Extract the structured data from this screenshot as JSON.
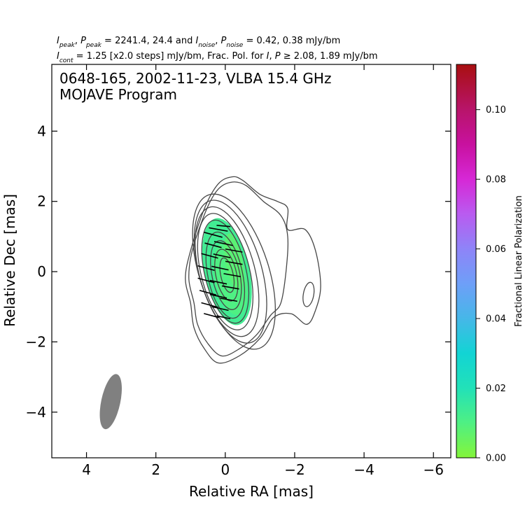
{
  "header": {
    "line1": {
      "i_sym": "I",
      "i_sub": "peak",
      "sep1": ", ",
      "p_sym": "P",
      "p_sub": "peak",
      "text1": " = 2241.4, 24.4 and ",
      "i2_sym": "I",
      "i2_sub": "noise",
      "sep2": ", ",
      "p2_sym": "P",
      "p2_sub": "noise",
      "text2": " = 0.42, 0.38 mJy/bm"
    },
    "line2": {
      "i_sym": "I",
      "i_sub": "cont",
      "text1": " = 1.25 [x2.0 steps] mJy/bm, Frac. Pol. for ",
      "i2_sym": "I",
      "sep": ", ",
      "p_sym": "P",
      "text2": " ≥ 2.08, 1.89 mJy/bm"
    }
  },
  "chart_data": {
    "type": "contour",
    "title": "0648-165, 2002-11-23, VLBA 15.4 GHz",
    "subtitle": "MOJAVE Program",
    "xlabel": "Relative RA [mas]",
    "ylabel": "Relative Dec [mas]",
    "xlim": [
      5.0,
      -6.5
    ],
    "ylim": [
      -5.3,
      5.9
    ],
    "x_ticks": [
      4,
      2,
      0,
      -2,
      -4,
      -6
    ],
    "x_tick_labels": [
      "4",
      "2",
      "0",
      "−2",
      "−4",
      "−6"
    ],
    "y_ticks": [
      4,
      2,
      0,
      -2,
      -4
    ],
    "y_tick_labels": [
      "4",
      "2",
      "0",
      "−2",
      "−4"
    ],
    "contour_levels_mjy": [
      1.25,
      2.5,
      5,
      10,
      20,
      40,
      80,
      160,
      320,
      640,
      1280
    ],
    "contours": [
      {
        "cx": -0.45,
        "cy": 0.0,
        "a": 1.3,
        "b": 2.6,
        "pa": -20,
        "c": "#474747"
      },
      {
        "cx": -0.35,
        "cy": 0.0,
        "a": 1.15,
        "b": 2.45,
        "pa": -20,
        "c": "#474747"
      },
      {
        "cx": -0.25,
        "cy": 0.0,
        "a": 1.0,
        "b": 2.3,
        "pa": -18,
        "c": "#474747"
      },
      {
        "cx": -0.15,
        "cy": 0.0,
        "a": 0.9,
        "b": 2.1,
        "pa": -16,
        "c": "#474747"
      },
      {
        "cx": -0.05,
        "cy": 0.0,
        "a": 0.8,
        "b": 1.9,
        "pa": -15,
        "c": "#474747"
      },
      {
        "cx": 0.0,
        "cy": 0.0,
        "a": 0.7,
        "b": 1.7,
        "pa": -14,
        "c": "#474747"
      },
      {
        "cx": 0.0,
        "cy": 0.0,
        "a": 0.6,
        "b": 1.5,
        "pa": -13,
        "c": "#474747"
      },
      {
        "cx": 0.0,
        "cy": -0.1,
        "a": 0.5,
        "b": 1.25,
        "pa": -12,
        "c": "#474747"
      },
      {
        "cx": -0.02,
        "cy": -0.1,
        "a": 0.4,
        "b": 1.0,
        "pa": -12,
        "c": "#474747"
      },
      {
        "cx": -0.03,
        "cy": -0.1,
        "a": 0.3,
        "b": 0.75,
        "pa": -12,
        "c": "#474747"
      },
      {
        "cx": -0.05,
        "cy": -0.1,
        "a": 0.18,
        "b": 0.5,
        "pa": -12,
        "c": "#474747"
      }
    ],
    "outer_contour_points": [
      [
        0.9,
        -1.6
      ],
      [
        0.6,
        -2.2
      ],
      [
        0.2,
        -2.6
      ],
      [
        -0.4,
        -2.4
      ],
      [
        -1.0,
        -1.9
      ],
      [
        -1.4,
        -1.3
      ],
      [
        -1.9,
        -1.2
      ],
      [
        -2.35,
        -1.5
      ],
      [
        -2.6,
        -1.1
      ],
      [
        -2.75,
        -0.4
      ],
      [
        -2.6,
        0.6
      ],
      [
        -2.3,
        1.2
      ],
      [
        -1.8,
        1.2
      ],
      [
        -1.8,
        1.8
      ],
      [
        -1.5,
        2.0
      ],
      [
        -1.0,
        2.2
      ],
      [
        -0.5,
        2.6
      ],
      [
        -0.2,
        2.7
      ],
      [
        0.2,
        2.5
      ],
      [
        0.6,
        1.8
      ],
      [
        1.0,
        0.6
      ],
      [
        1.15,
        -0.2
      ],
      [
        1.0,
        -0.9
      ]
    ],
    "second_contour_points": [
      [
        0.8,
        -1.5
      ],
      [
        0.5,
        -2.05
      ],
      [
        0.1,
        -2.4
      ],
      [
        -0.4,
        -2.2
      ],
      [
        -0.9,
        -1.8
      ],
      [
        -1.3,
        -1.25
      ],
      [
        -1.6,
        -0.9
      ],
      [
        -1.75,
        0.0
      ],
      [
        -1.8,
        1.0
      ],
      [
        -1.6,
        1.6
      ],
      [
        -1.1,
        2.0
      ],
      [
        -0.6,
        2.45
      ],
      [
        -0.2,
        2.55
      ],
      [
        0.2,
        2.35
      ],
      [
        0.55,
        1.75
      ],
      [
        0.95,
        0.6
      ],
      [
        1.05,
        -0.2
      ],
      [
        0.9,
        -0.9
      ]
    ],
    "small_island": {
      "cx": -2.4,
      "cy": -0.65,
      "a": 0.15,
      "b": 0.35,
      "pa": 10
    },
    "polarization_regions": [
      {
        "cx": -0.05,
        "cy": 0.0,
        "a": 0.65,
        "b": 1.55,
        "pa": -12,
        "frac": 0.013
      },
      {
        "cx": -0.15,
        "cy": -0.2,
        "a": 0.45,
        "b": 1.05,
        "pa": -12,
        "frac": 0.01
      },
      {
        "cx": -0.25,
        "cy": 0.3,
        "a": 0.25,
        "b": 0.8,
        "pa": -10,
        "frac": 0.008
      }
    ],
    "evpa_vectors": [
      {
        "x": 0.2,
        "y": 1.2,
        "len": 0.55,
        "angle": 10
      },
      {
        "x": 0.35,
        "y": 1.05,
        "len": 0.55,
        "angle": 15
      },
      {
        "x": 0.05,
        "y": 1.3,
        "len": 0.4,
        "angle": 5
      },
      {
        "x": 0.35,
        "y": 0.75,
        "len": 0.5,
        "angle": 15
      },
      {
        "x": 0.05,
        "y": 0.8,
        "len": 0.55,
        "angle": 12
      },
      {
        "x": -0.25,
        "y": 0.6,
        "len": 0.5,
        "angle": 10
      },
      {
        "x": 0.45,
        "y": 0.45,
        "len": 0.5,
        "angle": 15
      },
      {
        "x": 0.1,
        "y": 0.45,
        "len": 0.5,
        "angle": 12
      },
      {
        "x": -0.25,
        "y": 0.25,
        "len": 0.5,
        "angle": 10
      },
      {
        "x": 0.55,
        "y": 0.1,
        "len": 0.5,
        "angle": 15
      },
      {
        "x": 0.15,
        "y": 0.1,
        "len": 0.5,
        "angle": 12
      },
      {
        "x": -0.2,
        "y": -0.1,
        "len": 0.5,
        "angle": 10
      },
      {
        "x": 0.55,
        "y": -0.25,
        "len": 0.5,
        "angle": 15
      },
      {
        "x": 0.2,
        "y": -0.3,
        "len": 0.5,
        "angle": 12
      },
      {
        "x": -0.15,
        "y": -0.45,
        "len": 0.5,
        "angle": 10
      },
      {
        "x": 0.5,
        "y": -0.6,
        "len": 0.5,
        "angle": 15
      },
      {
        "x": 0.2,
        "y": -0.7,
        "len": 0.5,
        "angle": 12
      },
      {
        "x": -0.1,
        "y": -0.8,
        "len": 0.5,
        "angle": 10
      },
      {
        "x": 0.45,
        "y": -0.95,
        "len": 0.5,
        "angle": 15
      },
      {
        "x": 0.15,
        "y": -1.05,
        "len": 0.5,
        "angle": 12
      },
      {
        "x": 0.4,
        "y": -1.25,
        "len": 0.45,
        "angle": 15
      },
      {
        "x": 0.05,
        "y": -1.3,
        "len": 0.4,
        "angle": 12
      }
    ],
    "beam": {
      "x": 3.3,
      "y": -3.7,
      "major": 1.6,
      "minor": 0.55,
      "pa": -12,
      "color": "#808080"
    },
    "colorbar": {
      "label": "Fractional Linear Polarization",
      "min": 0.0,
      "max": 0.113,
      "ticks": [
        0.0,
        0.02,
        0.04,
        0.06,
        0.08,
        0.1
      ],
      "tick_labels": [
        "0.00",
        "0.02",
        "0.04",
        "0.06",
        "0.08",
        "0.10"
      ],
      "stops": [
        {
          "v": 0.0,
          "c": "#84f53a"
        },
        {
          "v": 0.01,
          "c": "#4ff083"
        },
        {
          "v": 0.02,
          "c": "#22e1b8"
        },
        {
          "v": 0.03,
          "c": "#12d4d4"
        },
        {
          "v": 0.04,
          "c": "#46b7e8"
        },
        {
          "v": 0.05,
          "c": "#6e9ff8"
        },
        {
          "v": 0.06,
          "c": "#8e84f8"
        },
        {
          "v": 0.07,
          "c": "#b95bf0"
        },
        {
          "v": 0.08,
          "c": "#d628d6"
        },
        {
          "v": 0.09,
          "c": "#c8119f"
        },
        {
          "v": 0.1,
          "c": "#b8146a"
        },
        {
          "v": 0.113,
          "c": "#a80f10"
        }
      ]
    }
  }
}
